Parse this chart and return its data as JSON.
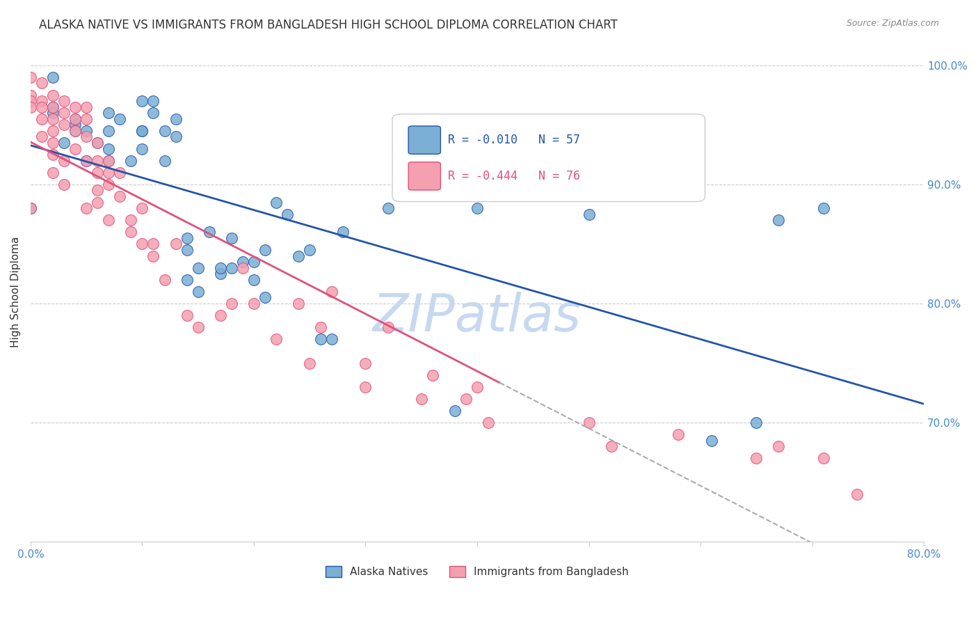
{
  "title": "ALASKA NATIVE VS IMMIGRANTS FROM BANGLADESH HIGH SCHOOL DIPLOMA CORRELATION CHART",
  "source": "Source: ZipAtlas.com",
  "ylabel": "High School Diploma",
  "y_ticks": [
    1.0,
    0.9,
    0.8,
    0.7
  ],
  "y_tick_labels": [
    "100.0%",
    "90.0%",
    "80.0%",
    "70.0%"
  ],
  "x_min": 0.0,
  "x_max": 0.8,
  "y_min": 0.6,
  "y_max": 1.02,
  "blue_R": -0.01,
  "blue_N": 57,
  "pink_R": -0.444,
  "pink_N": 76,
  "blue_color": "#7BAFD4",
  "pink_color": "#F4A0B0",
  "blue_line_color": "#2255AA",
  "pink_line_color": "#E0507A",
  "watermark_color": "#C8D8F0",
  "background_color": "#FFFFFF",
  "grid_color": "#CCCCCC",
  "title_color": "#333333",
  "right_axis_color": "#4488CC",
  "legend_label_blue": "Alaska Natives",
  "legend_label_pink": "Immigrants from Bangladesh",
  "blue_scatter_x": [
    0.0,
    0.02,
    0.02,
    0.02,
    0.03,
    0.04,
    0.04,
    0.04,
    0.05,
    0.05,
    0.06,
    0.07,
    0.07,
    0.07,
    0.07,
    0.08,
    0.09,
    0.1,
    0.1,
    0.1,
    0.1,
    0.11,
    0.11,
    0.12,
    0.12,
    0.13,
    0.13,
    0.14,
    0.14,
    0.14,
    0.15,
    0.15,
    0.16,
    0.17,
    0.17,
    0.18,
    0.18,
    0.19,
    0.2,
    0.2,
    0.21,
    0.21,
    0.22,
    0.23,
    0.24,
    0.25,
    0.26,
    0.27,
    0.28,
    0.32,
    0.38,
    0.4,
    0.5,
    0.61,
    0.65,
    0.67,
    0.71
  ],
  "blue_scatter_y": [
    0.88,
    0.99,
    0.965,
    0.96,
    0.935,
    0.95,
    0.955,
    0.945,
    0.92,
    0.945,
    0.935,
    0.93,
    0.92,
    0.945,
    0.96,
    0.955,
    0.92,
    0.945,
    0.945,
    0.97,
    0.93,
    0.96,
    0.97,
    0.92,
    0.945,
    0.955,
    0.94,
    0.82,
    0.855,
    0.845,
    0.83,
    0.81,
    0.86,
    0.825,
    0.83,
    0.855,
    0.83,
    0.835,
    0.82,
    0.835,
    0.805,
    0.845,
    0.885,
    0.875,
    0.84,
    0.845,
    0.77,
    0.77,
    0.86,
    0.88,
    0.71,
    0.88,
    0.875,
    0.685,
    0.7,
    0.87,
    0.88
  ],
  "pink_scatter_x": [
    0.0,
    0.0,
    0.0,
    0.0,
    0.0,
    0.01,
    0.01,
    0.01,
    0.01,
    0.01,
    0.02,
    0.02,
    0.02,
    0.02,
    0.02,
    0.02,
    0.02,
    0.03,
    0.03,
    0.03,
    0.03,
    0.03,
    0.04,
    0.04,
    0.04,
    0.04,
    0.05,
    0.05,
    0.05,
    0.05,
    0.05,
    0.06,
    0.06,
    0.06,
    0.06,
    0.06,
    0.07,
    0.07,
    0.07,
    0.07,
    0.08,
    0.08,
    0.09,
    0.09,
    0.1,
    0.1,
    0.11,
    0.11,
    0.12,
    0.13,
    0.14,
    0.15,
    0.17,
    0.18,
    0.19,
    0.2,
    0.22,
    0.24,
    0.25,
    0.26,
    0.27,
    0.3,
    0.3,
    0.32,
    0.35,
    0.36,
    0.39,
    0.4,
    0.41,
    0.5,
    0.52,
    0.58,
    0.65,
    0.67,
    0.71,
    0.74
  ],
  "pink_scatter_y": [
    0.99,
    0.975,
    0.97,
    0.965,
    0.88,
    0.985,
    0.97,
    0.965,
    0.955,
    0.94,
    0.975,
    0.965,
    0.955,
    0.945,
    0.935,
    0.925,
    0.91,
    0.97,
    0.96,
    0.95,
    0.92,
    0.9,
    0.965,
    0.955,
    0.945,
    0.93,
    0.965,
    0.955,
    0.94,
    0.92,
    0.88,
    0.935,
    0.92,
    0.91,
    0.895,
    0.885,
    0.92,
    0.91,
    0.9,
    0.87,
    0.91,
    0.89,
    0.87,
    0.86,
    0.85,
    0.88,
    0.85,
    0.84,
    0.82,
    0.85,
    0.79,
    0.78,
    0.79,
    0.8,
    0.83,
    0.8,
    0.77,
    0.8,
    0.75,
    0.78,
    0.81,
    0.75,
    0.73,
    0.78,
    0.72,
    0.74,
    0.72,
    0.73,
    0.7,
    0.7,
    0.68,
    0.69,
    0.67,
    0.68,
    0.67,
    0.64
  ]
}
